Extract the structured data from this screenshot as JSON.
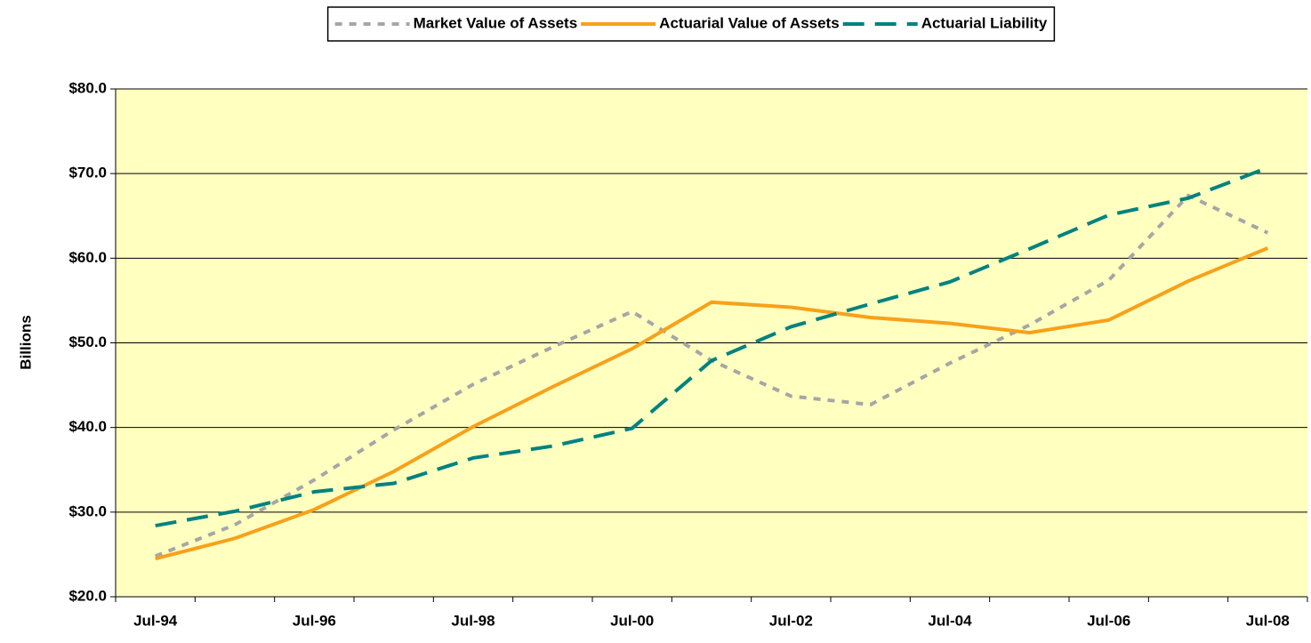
{
  "chart_data": {
    "type": "line",
    "y_label": "Billions",
    "categories": [
      "Jul-94",
      null,
      "Jul-96",
      null,
      "Jul-98",
      null,
      "Jul-00",
      null,
      "Jul-02",
      null,
      "Jul-04",
      null,
      "Jul-06",
      null,
      "Jul-08"
    ],
    "series": [
      {
        "name": "Market Value of Assets",
        "color": "#a6a6a6",
        "dash": "dotted",
        "values": [
          24.8,
          28.5,
          33.8,
          39.7,
          45.1,
          49.5,
          53.7,
          47.9,
          43.7,
          42.7,
          47.6,
          52.1,
          57.4,
          67.4,
          63.0
        ]
      },
      {
        "name": "Actuarial Value of Assets",
        "color": "#f7a11a",
        "dash": "solid",
        "values": [
          24.5,
          26.9,
          30.3,
          34.8,
          40.1,
          44.8,
          49.3,
          54.8,
          54.2,
          53.0,
          52.3,
          51.2,
          52.7,
          57.3,
          61.2
        ]
      },
      {
        "name": "Actuarial Liability",
        "color": "#00827f",
        "dash": "dashed",
        "values": [
          28.4,
          30.1,
          32.4,
          33.4,
          36.4,
          37.8,
          39.9,
          47.9,
          51.9,
          54.6,
          57.2,
          61.1,
          65.1,
          67.1,
          70.7
        ]
      }
    ],
    "ylim": [
      20,
      80
    ],
    "yticks": [
      {
        "value": 20,
        "label": "$20.0"
      },
      {
        "value": 30,
        "label": "$30.0"
      },
      {
        "value": 40,
        "label": "$40.0"
      },
      {
        "value": 50,
        "label": "$50.0"
      },
      {
        "value": 60,
        "label": "$60.0"
      },
      {
        "value": 70,
        "label": "$70.0"
      },
      {
        "value": 80,
        "label": "$80.0"
      }
    ],
    "grid": true,
    "legend": "top",
    "plot_background": "#ffffc0"
  }
}
